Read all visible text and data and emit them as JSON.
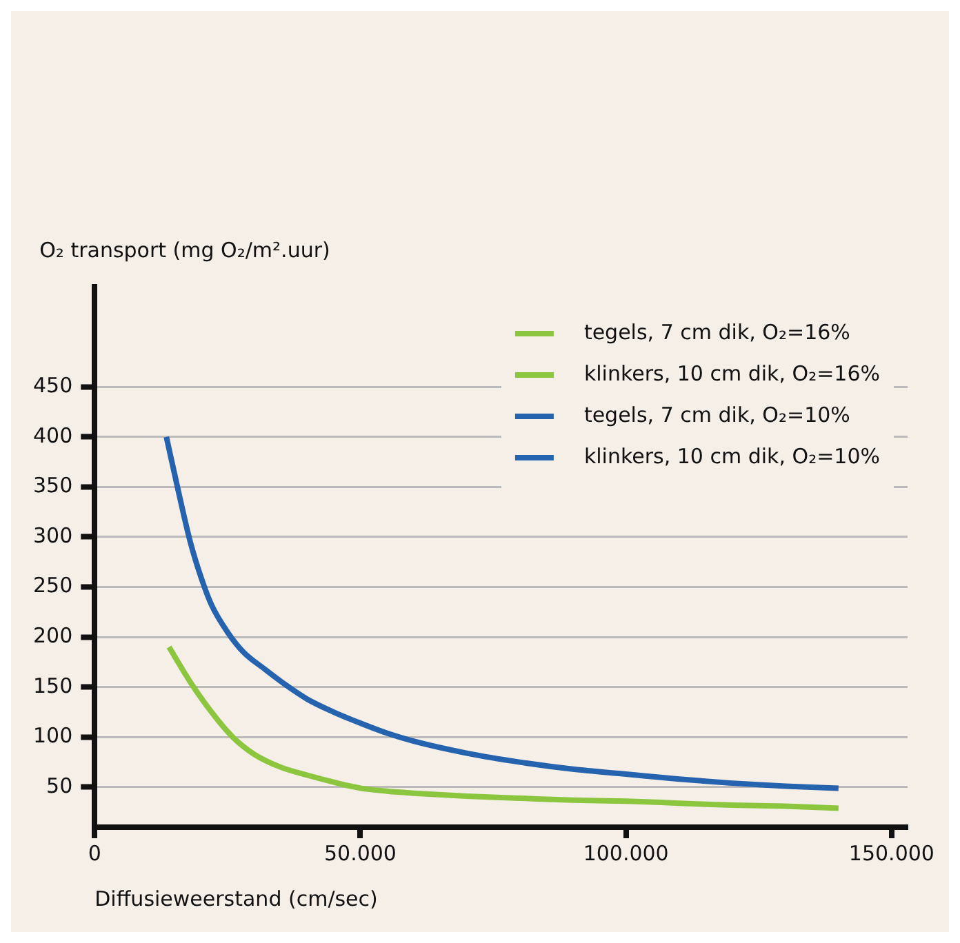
{
  "chart_data": {
    "type": "line",
    "ylabel": "O₂ transport (mg O₂/m².uur)",
    "xlabel": "Diffusieweerstand (cm/sec)",
    "xlim": [
      0,
      153000
    ],
    "xticks": [
      0,
      {
        "value": 50000,
        "label": "50.000"
      },
      {
        "value": 100000,
        "label": "100.000"
      },
      {
        "value": 150000,
        "label": "150.000"
      }
    ],
    "ylim": [
      10,
      550
    ],
    "yticks": [
      50,
      100,
      150,
      200,
      250,
      300,
      350,
      400,
      450
    ],
    "grid": "y",
    "legend": "top right",
    "marker": "none",
    "line_style": "solid",
    "series": [
      {
        "name": "tegels, 7 cm dik, O₂=16%",
        "color": "#8cc63f",
        "x": [
          14000,
          18000,
          22000,
          26000,
          30000,
          35000,
          40000,
          45000,
          50000,
          55000,
          60000,
          70000,
          80000,
          90000,
          100000,
          110000,
          120000,
          130000,
          140000
        ],
        "values": [
          190,
          155,
          125,
          100,
          83,
          70,
          62,
          55,
          49,
          46,
          44,
          41,
          39,
          37,
          36,
          34,
          32,
          31,
          29
        ]
      },
      {
        "name": "klinkers, 10 cm dik, O₂=16%",
        "color": "#8cc63f"
      },
      {
        "name": "tegels, 7 cm dik, O₂=10%",
        "color": "#2563ae",
        "x": [
          13500,
          16000,
          18000,
          20000,
          22000,
          25000,
          28000,
          32000,
          36000,
          40000,
          45000,
          50000,
          55000,
          60000,
          70000,
          80000,
          90000,
          100000,
          110000,
          120000,
          130000,
          140000
        ],
        "values": [
          400,
          340,
          295,
          260,
          232,
          205,
          185,
          168,
          152,
          138,
          125,
          114,
          104,
          96,
          84,
          75,
          68,
          63,
          58,
          54,
          51,
          49
        ]
      },
      {
        "name": "klinkers, 10 cm dik, O₂=10%",
        "color": "#2563ae"
      }
    ]
  }
}
